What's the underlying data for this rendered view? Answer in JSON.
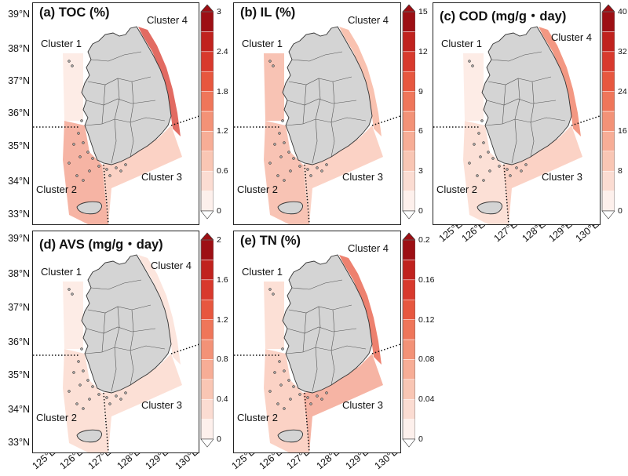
{
  "figure": {
    "latitude_labels": [
      "39°N",
      "38°N",
      "37°N",
      "36°N",
      "35°N",
      "34°N",
      "33°N"
    ],
    "longitude_labels": [
      "125°E",
      "126°E",
      "127°E",
      "128°E",
      "129°E",
      "130°E"
    ],
    "cluster_labels": [
      "Cluster 1",
      "Cluster 2",
      "Cluster 3",
      "Cluster 4"
    ]
  },
  "colors": {
    "land": "#d4d4d4",
    "ramp": [
      "#fdf0ec",
      "#fbdcd2",
      "#f9c6b4",
      "#f7ad96",
      "#f39277",
      "#ef765a",
      "#e7573f",
      "#d8392d",
      "#c0221e",
      "#9d0f14"
    ]
  },
  "chart_data": [
    {
      "type": "heatmap",
      "id": "a",
      "title": "(a) TOC (%)",
      "variable": "TOC",
      "unit": "%",
      "colorbar_ticks": [
        "0",
        "0.6",
        "1.2",
        "1.8",
        "2.4",
        "3"
      ],
      "range": [
        0,
        3
      ],
      "intensity": {
        "c1": 0.12,
        "c2": 0.55,
        "c3": 0.3,
        "c4": 0.75
      }
    },
    {
      "type": "heatmap",
      "id": "b",
      "title": "(b) IL (%)",
      "variable": "IL",
      "unit": "%",
      "colorbar_ticks": [
        "0",
        "3",
        "6",
        "9",
        "12",
        "15"
      ],
      "range": [
        0,
        15
      ],
      "intensity": {
        "c1": 0.4,
        "c2": 0.4,
        "c3": 0.35,
        "c4": 0.35
      }
    },
    {
      "type": "heatmap",
      "id": "c",
      "title": "(c) COD (mg/g・day)",
      "variable": "COD",
      "unit": "mg/g・day",
      "colorbar_ticks": [
        "0",
        "8",
        "16",
        "24",
        "32",
        "40"
      ],
      "range": [
        0,
        40
      ],
      "intensity": {
        "c1": 0.15,
        "c2": 0.25,
        "c3": 0.3,
        "c4": 0.55
      }
    },
    {
      "type": "heatmap",
      "id": "d",
      "title": "(d) AVS (mg/g・day)",
      "variable": "AVS",
      "unit": "mg/g・day",
      "colorbar_ticks": [
        "0",
        "0.4",
        "0.8",
        "1.2",
        "1.6",
        "2"
      ],
      "range": [
        0,
        2
      ],
      "intensity": {
        "c1": 0.1,
        "c2": 0.2,
        "c3": 0.18,
        "c4": 0.15
      }
    },
    {
      "type": "heatmap",
      "id": "e",
      "title": "(e) TN (%)",
      "variable": "TN",
      "unit": "%",
      "colorbar_ticks": [
        "0",
        "0.04",
        "0.08",
        "0.12",
        "0.16",
        "0.2"
      ],
      "range": [
        0,
        0.2
      ],
      "intensity": {
        "c1": 0.2,
        "c2": 0.35,
        "c3": 0.6,
        "c4": 0.7
      }
    }
  ]
}
